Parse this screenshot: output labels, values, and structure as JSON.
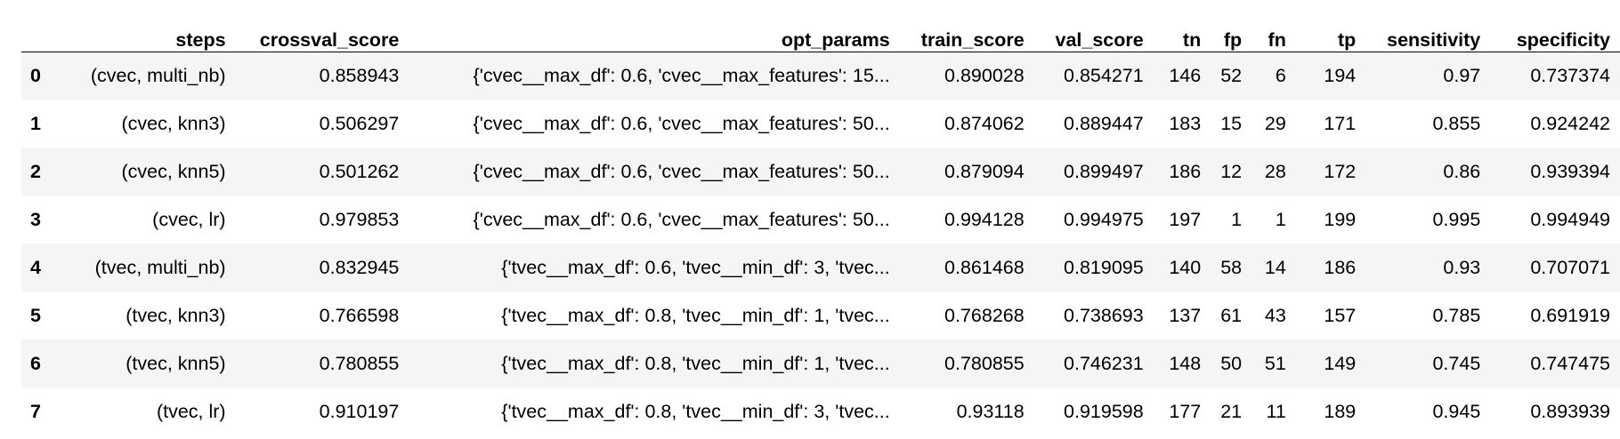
{
  "table": {
    "columns": [
      "",
      "steps",
      "crossval_score",
      "opt_params",
      "train_score",
      "val_score",
      "tn",
      "fp",
      "fn",
      "tp",
      "sensitivity",
      "specificity"
    ],
    "rows": [
      {
        "index": "0",
        "steps": "(cvec, multi_nb)",
        "crossval_score": "0.858943",
        "opt_params": "{'cvec__max_df': 0.6, 'cvec__max_features': 15...",
        "train_score": "0.890028",
        "val_score": "0.854271",
        "tn": "146",
        "fp": "52",
        "fn": "6",
        "tp": "194",
        "sensitivity": "0.97",
        "specificity": "0.737374"
      },
      {
        "index": "1",
        "steps": "(cvec, knn3)",
        "crossval_score": "0.506297",
        "opt_params": "{'cvec__max_df': 0.6, 'cvec__max_features': 50...",
        "train_score": "0.874062",
        "val_score": "0.889447",
        "tn": "183",
        "fp": "15",
        "fn": "29",
        "tp": "171",
        "sensitivity": "0.855",
        "specificity": "0.924242"
      },
      {
        "index": "2",
        "steps": "(cvec, knn5)",
        "crossval_score": "0.501262",
        "opt_params": "{'cvec__max_df': 0.6, 'cvec__max_features': 50...",
        "train_score": "0.879094",
        "val_score": "0.899497",
        "tn": "186",
        "fp": "12",
        "fn": "28",
        "tp": "172",
        "sensitivity": "0.86",
        "specificity": "0.939394"
      },
      {
        "index": "3",
        "steps": "(cvec, lr)",
        "crossval_score": "0.979853",
        "opt_params": "{'cvec__max_df': 0.6, 'cvec__max_features': 50...",
        "train_score": "0.994128",
        "val_score": "0.994975",
        "tn": "197",
        "fp": "1",
        "fn": "1",
        "tp": "199",
        "sensitivity": "0.995",
        "specificity": "0.994949"
      },
      {
        "index": "4",
        "steps": "(tvec, multi_nb)",
        "crossval_score": "0.832945",
        "opt_params": "{'tvec__max_df': 0.6, 'tvec__min_df': 3, 'tvec...",
        "train_score": "0.861468",
        "val_score": "0.819095",
        "tn": "140",
        "fp": "58",
        "fn": "14",
        "tp": "186",
        "sensitivity": "0.93",
        "specificity": "0.707071"
      },
      {
        "index": "5",
        "steps": "(tvec, knn3)",
        "crossval_score": "0.766598",
        "opt_params": "{'tvec__max_df': 0.8, 'tvec__min_df': 1, 'tvec...",
        "train_score": "0.768268",
        "val_score": "0.738693",
        "tn": "137",
        "fp": "61",
        "fn": "43",
        "tp": "157",
        "sensitivity": "0.785",
        "specificity": "0.691919"
      },
      {
        "index": "6",
        "steps": "(tvec, knn5)",
        "crossval_score": "0.780855",
        "opt_params": "{'tvec__max_df': 0.8, 'tvec__min_df': 1, 'tvec...",
        "train_score": "0.780855",
        "val_score": "0.746231",
        "tn": "148",
        "fp": "50",
        "fn": "51",
        "tp": "149",
        "sensitivity": "0.745",
        "specificity": "0.747475"
      },
      {
        "index": "7",
        "steps": "(tvec, lr)",
        "crossval_score": "0.910197",
        "opt_params": "{'tvec__max_df': 0.8, 'tvec__min_df': 3, 'tvec...",
        "train_score": "0.93118",
        "val_score": "0.919598",
        "tn": "177",
        "fp": "21",
        "fn": "11",
        "tp": "189",
        "sensitivity": "0.945",
        "specificity": "0.893939"
      }
    ]
  },
  "colors": {
    "header_rule": "#000000",
    "row_stripe": "#f5f5f5",
    "row_plain": "#ffffff",
    "text": "#000000"
  }
}
